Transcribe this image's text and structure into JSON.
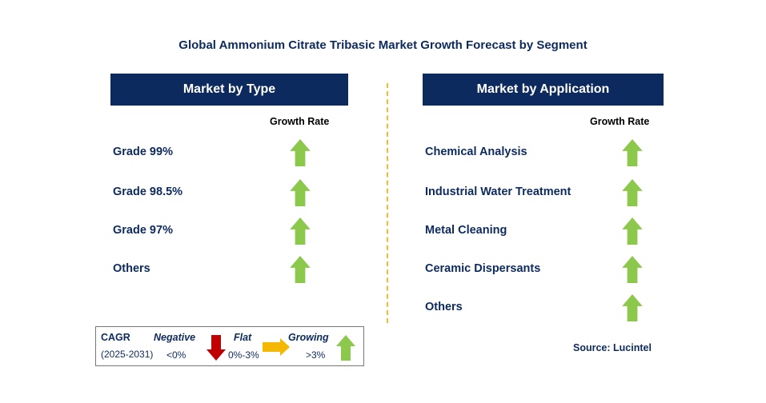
{
  "title": "Global Ammonium Citrate Tribasic Market Growth Forecast by Segment",
  "type_panel": {
    "header": "Market by Type",
    "growth_label": "Growth Rate",
    "items": [
      {
        "label": "Grade 99%",
        "trend": "growing"
      },
      {
        "label": "Grade 98.5%",
        "trend": "growing"
      },
      {
        "label": "Grade 97%",
        "trend": "growing"
      },
      {
        "label": "Others",
        "trend": "growing"
      }
    ]
  },
  "application_panel": {
    "header": "Market by Application",
    "growth_label": "Growth Rate",
    "items": [
      {
        "label": "Chemical Analysis",
        "trend": "growing"
      },
      {
        "label": "Industrial Water Treatment",
        "trend": "growing"
      },
      {
        "label": "Metal Cleaning",
        "trend": "growing"
      },
      {
        "label": "Ceramic Dispersants",
        "trend": "growing"
      },
      {
        "label": "Others",
        "trend": "growing"
      }
    ]
  },
  "legend": {
    "cagr": "CAGR",
    "period": "(2025-2031)",
    "negative": "Negative",
    "negative_range": "<0%",
    "flat": "Flat",
    "flat_range": "0%-3%",
    "growing": "Growing",
    "growing_range": ">3%"
  },
  "source": "Source: Lucintel",
  "colors": {
    "navy": "#0d2a5e",
    "green": "#8cc84b",
    "red": "#c00000",
    "amber": "#f5b800",
    "divider": "#f5b82e"
  }
}
